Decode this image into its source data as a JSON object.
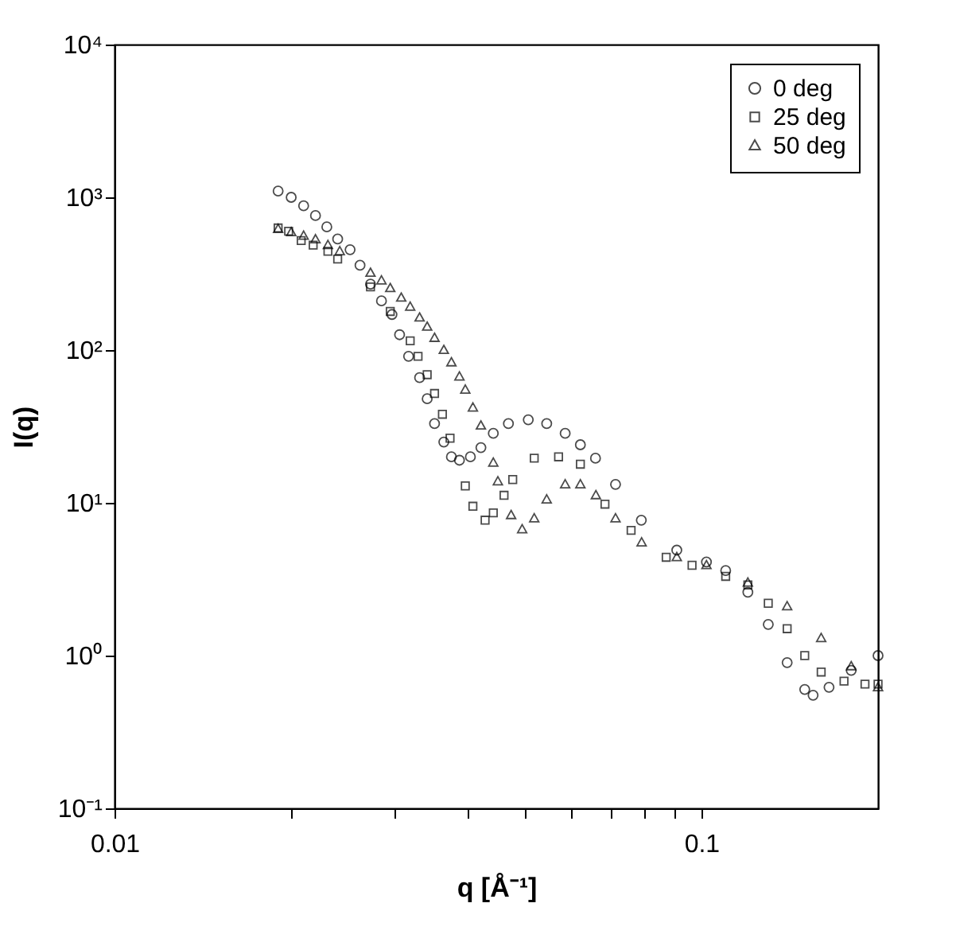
{
  "chart_data": {
    "type": "scatter",
    "xlabel": "q [Å⁻¹]",
    "ylabel": "I(q)",
    "log": "xy",
    "grid": false,
    "legend": "top right",
    "xlim": [
      0.01,
      0.2
    ],
    "ylim": [
      0.1,
      10000
    ],
    "xticks": [
      0.01,
      {
        "value": 0.02,
        "label": null
      },
      {
        "value": 0.03,
        "label": null
      },
      {
        "value": 0.04,
        "label": null
      },
      {
        "value": 0.05,
        "label": null
      },
      {
        "value": 0.06,
        "label": null
      },
      {
        "value": 0.07,
        "label": null
      },
      {
        "value": 0.08,
        "label": null
      },
      {
        "value": 0.09,
        "label": null
      },
      0.1
    ],
    "yticks": [
      {
        "value": 0.1,
        "label": "10⁻¹"
      },
      {
        "value": 1,
        "label": "10⁰"
      },
      {
        "value": 10,
        "label": "10¹"
      },
      {
        "value": 100,
        "label": "10²"
      },
      {
        "value": 1000,
        "label": "10³"
      },
      {
        "value": 10000,
        "label": "10⁴"
      }
    ],
    "series": [
      {
        "name": "0 deg",
        "color": "#000000",
        "marker": "circle",
        "x": [
          0.019,
          0.02,
          0.021,
          0.022,
          0.023,
          0.024,
          0.0252,
          0.0262,
          0.0273,
          0.0285,
          0.0297,
          0.0306,
          0.0317,
          0.0331,
          0.0341,
          0.0351,
          0.0364,
          0.0375,
          0.0387,
          0.0404,
          0.0421,
          0.0442,
          0.0469,
          0.0507,
          0.0545,
          0.0586,
          0.0622,
          0.066,
          0.0714,
          0.079,
          0.0908,
          0.102,
          0.11,
          0.12,
          0.13,
          0.14,
          0.15,
          0.155,
          0.165,
          0.18,
          0.2
        ],
        "values": [
          1100,
          1000,
          880,
          760,
          640,
          533,
          454,
          359,
          270,
          210,
          171,
          126,
          91,
          66,
          48,
          33,
          25,
          20,
          19,
          20,
          23,
          28.5,
          33,
          35,
          33,
          28.5,
          24,
          19.6,
          13.2,
          7.7,
          4.9,
          4.1,
          3.6,
          2.6,
          1.6,
          0.9,
          0.6,
          0.55,
          0.62,
          0.8,
          1.0
        ]
      },
      {
        "name": "25 deg",
        "color": "#000000",
        "marker": "square",
        "x": [
          0.019,
          0.0198,
          0.0208,
          0.0218,
          0.0231,
          0.024,
          0.0273,
          0.0295,
          0.0319,
          0.0329,
          0.0341,
          0.0351,
          0.0362,
          0.0373,
          0.0396,
          0.0408,
          0.0428,
          0.0442,
          0.0461,
          0.0477,
          0.0519,
          0.0571,
          0.0622,
          0.0685,
          0.0759,
          0.0871,
          0.0964,
          0.11,
          0.12,
          0.13,
          0.14,
          0.15,
          0.16,
          0.175,
          0.19,
          0.2
        ],
        "values": [
          630,
          600,
          521,
          486,
          443,
          394,
          259,
          179,
          115,
          91,
          69,
          52,
          38,
          26.5,
          12.9,
          9.5,
          7.7,
          8.6,
          11.2,
          14.2,
          19.6,
          20,
          17.9,
          9.8,
          6.6,
          4.4,
          3.9,
          3.3,
          2.9,
          2.2,
          1.5,
          1.0,
          0.78,
          0.68,
          0.65,
          0.65
        ]
      },
      {
        "name": "50 deg",
        "color": "#000000",
        "marker": "triangle",
        "x": [
          0.019,
          0.02,
          0.021,
          0.022,
          0.0231,
          0.0242,
          0.0273,
          0.0285,
          0.0295,
          0.0308,
          0.0319,
          0.0331,
          0.0341,
          0.0351,
          0.0364,
          0.0375,
          0.0387,
          0.0396,
          0.0408,
          0.0421,
          0.0442,
          0.045,
          0.0474,
          0.0495,
          0.0519,
          0.0545,
          0.0586,
          0.0622,
          0.0661,
          0.0714,
          0.0791,
          0.0908,
          0.102,
          0.12,
          0.14,
          0.16,
          0.18,
          0.2
        ],
        "values": [
          620,
          590,
          560,
          530,
          486,
          443,
          320,
          285,
          254,
          220,
          192,
          163,
          142,
          120,
          100,
          83,
          67,
          55,
          42,
          32,
          18.3,
          13.8,
          8.3,
          6.7,
          7.9,
          10.5,
          13.2,
          13.2,
          11.2,
          7.9,
          5.5,
          4.4,
          3.9,
          3.0,
          2.1,
          1.3,
          0.85,
          0.62
        ]
      }
    ]
  }
}
